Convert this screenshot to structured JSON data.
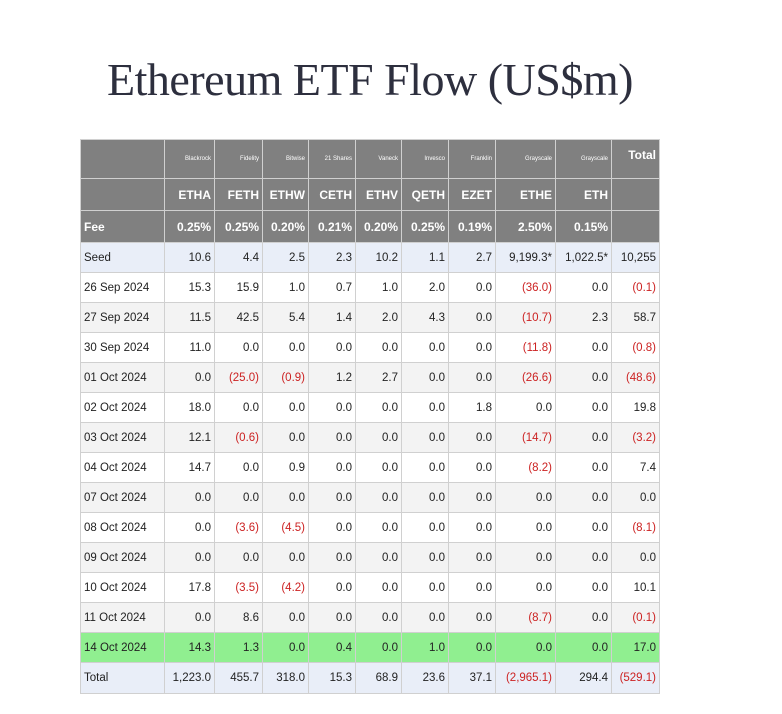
{
  "title": "Ethereum ETF Flow (US$m)",
  "chart_data": {
    "type": "table",
    "issuers": [
      "Blackrock",
      "Fidelity",
      "Bitwise",
      "21 Shares",
      "Vaneck",
      "Invesco",
      "Franklin",
      "Grayscale",
      "Grayscale"
    ],
    "total_header": "Total",
    "tickers": [
      "ETHA",
      "FETH",
      "ETHW",
      "CETH",
      "ETHV",
      "QETH",
      "EZET",
      "ETHE",
      "ETH"
    ],
    "fee_label": "Fee",
    "fees": [
      "0.25%",
      "0.25%",
      "0.20%",
      "0.21%",
      "0.20%",
      "0.25%",
      "0.19%",
      "2.50%",
      "0.15%"
    ],
    "rows": [
      {
        "label": "Seed",
        "cells": [
          "10.6",
          "4.4",
          "2.5",
          "2.3",
          "10.2",
          "1.1",
          "2.7",
          "9,199.3*",
          "1,022.5*",
          "10,255"
        ]
      },
      {
        "label": "26 Sep 2024",
        "cells": [
          "15.3",
          "15.9",
          "1.0",
          "0.7",
          "1.0",
          "2.0",
          "0.0",
          "(36.0)",
          "0.0",
          "(0.1)"
        ]
      },
      {
        "label": "27 Sep 2024",
        "cells": [
          "11.5",
          "42.5",
          "5.4",
          "1.4",
          "2.0",
          "4.3",
          "0.0",
          "(10.7)",
          "2.3",
          "58.7"
        ]
      },
      {
        "label": "30 Sep 2024",
        "cells": [
          "11.0",
          "0.0",
          "0.0",
          "0.0",
          "0.0",
          "0.0",
          "0.0",
          "(11.8)",
          "0.0",
          "(0.8)"
        ]
      },
      {
        "label": "01 Oct 2024",
        "cells": [
          "0.0",
          "(25.0)",
          "(0.9)",
          "1.2",
          "2.7",
          "0.0",
          "0.0",
          "(26.6)",
          "0.0",
          "(48.6)"
        ]
      },
      {
        "label": "02 Oct 2024",
        "cells": [
          "18.0",
          "0.0",
          "0.0",
          "0.0",
          "0.0",
          "0.0",
          "1.8",
          "0.0",
          "0.0",
          "19.8"
        ]
      },
      {
        "label": "03 Oct 2024",
        "cells": [
          "12.1",
          "(0.6)",
          "0.0",
          "0.0",
          "0.0",
          "0.0",
          "0.0",
          "(14.7)",
          "0.0",
          "(3.2)"
        ]
      },
      {
        "label": "04 Oct 2024",
        "cells": [
          "14.7",
          "0.0",
          "0.9",
          "0.0",
          "0.0",
          "0.0",
          "0.0",
          "(8.2)",
          "0.0",
          "7.4"
        ]
      },
      {
        "label": "07 Oct 2024",
        "cells": [
          "0.0",
          "0.0",
          "0.0",
          "0.0",
          "0.0",
          "0.0",
          "0.0",
          "0.0",
          "0.0",
          "0.0"
        ]
      },
      {
        "label": "08 Oct 2024",
        "cells": [
          "0.0",
          "(3.6)",
          "(4.5)",
          "0.0",
          "0.0",
          "0.0",
          "0.0",
          "0.0",
          "0.0",
          "(8.1)"
        ]
      },
      {
        "label": "09 Oct 2024",
        "cells": [
          "0.0",
          "0.0",
          "0.0",
          "0.0",
          "0.0",
          "0.0",
          "0.0",
          "0.0",
          "0.0",
          "0.0"
        ]
      },
      {
        "label": "10 Oct 2024",
        "cells": [
          "17.8",
          "(3.5)",
          "(4.2)",
          "0.0",
          "0.0",
          "0.0",
          "0.0",
          "0.0",
          "0.0",
          "10.1"
        ]
      },
      {
        "label": "11 Oct 2024",
        "cells": [
          "0.0",
          "8.6",
          "0.0",
          "0.0",
          "0.0",
          "0.0",
          "0.0",
          "(8.7)",
          "0.0",
          "(0.1)"
        ]
      },
      {
        "label": "14 Oct 2024",
        "cells": [
          "14.3",
          "1.3",
          "0.0",
          "0.4",
          "0.0",
          "1.0",
          "0.0",
          "0.0",
          "0.0",
          "17.0"
        ]
      },
      {
        "label": "Total",
        "cells": [
          "1,223.0",
          "455.7",
          "318.0",
          "15.3",
          "68.9",
          "23.6",
          "37.1",
          "(2,965.1)",
          "294.4",
          "(529.1)"
        ]
      }
    ],
    "colors": {
      "header_bg": "#808080",
      "negative": "#cc2222",
      "highlight_row": "#90ef90",
      "seed_total_bg": "#e9eef8",
      "alt_row_bg": "#f3f3f3"
    }
  }
}
